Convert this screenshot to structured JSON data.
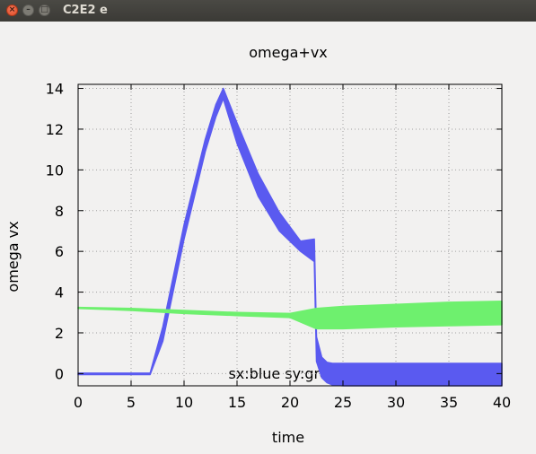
{
  "window": {
    "title": "C2E2 e",
    "close_glyph": "×",
    "minimize_glyph": "–",
    "maximize_glyph": "□"
  },
  "chart_data": {
    "type": "line",
    "title": "omega+vx",
    "xlabel": "time",
    "ylabel": "omega  vx",
    "xlim": [
      0,
      40
    ],
    "ylim": [
      -0.6,
      14.2
    ],
    "xticks": [
      0,
      5,
      10,
      15,
      20,
      25,
      30,
      35,
      40
    ],
    "yticks": [
      0,
      2,
      4,
      6,
      8,
      10,
      12,
      14
    ],
    "grid": true,
    "legend_text": "sx:blue sy:green",
    "series": [
      {
        "color": "#5a5af0",
        "x": [
          0,
          6.8,
          8,
          10,
          12,
          13,
          13.7,
          15,
          17,
          19,
          21,
          22.3,
          22.5,
          23,
          23.5,
          24,
          25,
          30,
          35,
          40
        ],
        "upper": [
          0.02,
          0.02,
          2.3,
          7.3,
          11.5,
          13.2,
          14.0,
          12.3,
          9.8,
          7.9,
          6.5,
          6.6,
          1.8,
          0.8,
          0.55,
          0.5,
          0.5,
          0.5,
          0.5,
          0.5
        ],
        "lower": [
          -0.05,
          -0.05,
          1.6,
          6.6,
          10.9,
          12.6,
          13.5,
          11.3,
          8.7,
          7.0,
          6.0,
          5.5,
          0.6,
          -0.2,
          -0.45,
          -0.55,
          -0.6,
          -0.6,
          -0.6,
          -0.6
        ]
      },
      {
        "color": "#6ef06e",
        "x": [
          0,
          5,
          10,
          15,
          20,
          22.5,
          25,
          30,
          35,
          40
        ],
        "upper": [
          3.25,
          3.2,
          3.1,
          3.0,
          2.95,
          3.2,
          3.3,
          3.4,
          3.5,
          3.55
        ],
        "lower": [
          3.2,
          3.1,
          2.95,
          2.85,
          2.75,
          2.2,
          2.2,
          2.3,
          2.35,
          2.4
        ]
      }
    ]
  }
}
